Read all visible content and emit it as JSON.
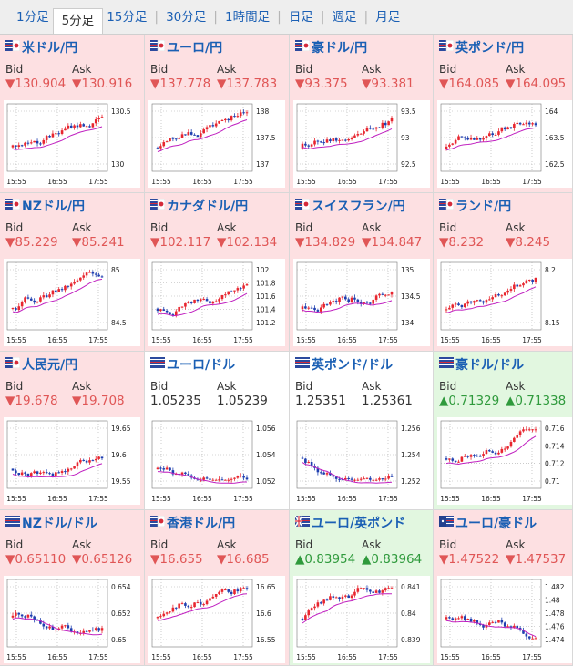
{
  "tabs": [
    {
      "label": "1分足",
      "active": false
    },
    {
      "label": "5分足",
      "active": true
    },
    {
      "label": "15分足",
      "active": false
    },
    {
      "label": "30分足",
      "active": false
    },
    {
      "label": "1時間足",
      "active": false
    },
    {
      "label": "日足",
      "active": false
    },
    {
      "label": "週足",
      "active": false
    },
    {
      "label": "月足",
      "active": false
    }
  ],
  "labels": {
    "bid": "Bid",
    "ask": "Ask"
  },
  "time_ticks": [
    "15:55",
    "16:55",
    "17:55"
  ],
  "colors": {
    "up_candle": "#e8262f",
    "down_candle": "#1f3fb0",
    "ma_line": "#c020c0",
    "cell_down": "#fde0e2",
    "cell_up": "#e2f7e0",
    "text_down": "#e05656",
    "text_up": "#2f9a3c",
    "link": "#1a5fb4"
  },
  "pairs": [
    {
      "name": "米ドル/円",
      "flag": "jp",
      "dir": "down",
      "bid": "▼130.904",
      "ask": "▼130.916",
      "yticks": [
        "130.5",
        "130"
      ]
    },
    {
      "name": "ユーロ/円",
      "flag": "jp",
      "dir": "down",
      "bid": "▼137.778",
      "ask": "▼137.783",
      "yticks": [
        "138",
        "137.5",
        "137"
      ]
    },
    {
      "name": "豪ドル/円",
      "flag": "jp",
      "dir": "down",
      "bid": "▼93.375",
      "ask": "▼93.381",
      "yticks": [
        "93.5",
        "93",
        "92.5"
      ]
    },
    {
      "name": "英ポンド/円",
      "flag": "jp",
      "dir": "down",
      "bid": "▼164.085",
      "ask": "▼164.095",
      "yticks": [
        "164",
        "163.5",
        "162.5"
      ]
    },
    {
      "name": "NZドル/円",
      "flag": "jp",
      "dir": "down",
      "bid": "▼85.229",
      "ask": "▼85.241",
      "yticks": [
        "85",
        "84.5"
      ]
    },
    {
      "name": "カナダドル/円",
      "flag": "jp",
      "dir": "down",
      "bid": "▼102.117",
      "ask": "▼102.134",
      "yticks": [
        "102",
        "101.8",
        "101.6",
        "101.4",
        "101.2"
      ]
    },
    {
      "name": "スイスフラン/円",
      "flag": "jp",
      "dir": "down",
      "bid": "▼134.829",
      "ask": "▼134.847",
      "yticks": [
        "135",
        "134.5",
        "134"
      ]
    },
    {
      "name": "ランド/円",
      "flag": "jp",
      "dir": "down",
      "bid": "▼8.232",
      "ask": "▼8.245",
      "yticks": [
        "8.2",
        "8.15"
      ]
    },
    {
      "name": "人民元/円",
      "flag": "jp",
      "dir": "down",
      "bid": "▼19.678",
      "ask": "▼19.708",
      "yticks": [
        "19.65",
        "19.6",
        "19.55"
      ]
    },
    {
      "name": "ユーロ/ドル",
      "flag": "us",
      "dir": "flat",
      "bid": "1.05235",
      "ask": "1.05239",
      "yticks": [
        "1.056",
        "1.054",
        "1.052"
      ]
    },
    {
      "name": "英ポンド/ドル",
      "flag": "us",
      "dir": "flat",
      "bid": "1.25351",
      "ask": "1.25361",
      "yticks": [
        "1.256",
        "1.254",
        "1.252"
      ]
    },
    {
      "name": "豪ドル/ドル",
      "flag": "us",
      "dir": "up",
      "bid": "▲0.71329",
      "ask": "▲0.71338",
      "yticks": [
        "0.716",
        "0.714",
        "0.712",
        "0.71"
      ]
    },
    {
      "name": "NZドル/ドル",
      "flag": "us",
      "dir": "down",
      "bid": "▼0.65110",
      "ask": "▼0.65126",
      "yticks": [
        "0.654",
        "0.652",
        "0.65"
      ]
    },
    {
      "name": "香港ドル/円",
      "flag": "jp",
      "dir": "down",
      "bid": "▼16.655",
      "ask": "▼16.685",
      "yticks": [
        "16.65",
        "16.6",
        "16.55"
      ]
    },
    {
      "name": "ユーロ/英ポンド",
      "flag": "uk",
      "dir": "up",
      "bid": "▲0.83954",
      "ask": "▲0.83964",
      "yticks": [
        "0.841",
        "0.84",
        "0.839"
      ]
    },
    {
      "name": "ユーロ/豪ドル",
      "flag": "au",
      "dir": "down",
      "bid": "▼1.47522",
      "ask": "▼1.47537",
      "yticks": [
        "1.482",
        "1.48",
        "1.478",
        "1.476",
        "1.474"
      ]
    }
  ]
}
